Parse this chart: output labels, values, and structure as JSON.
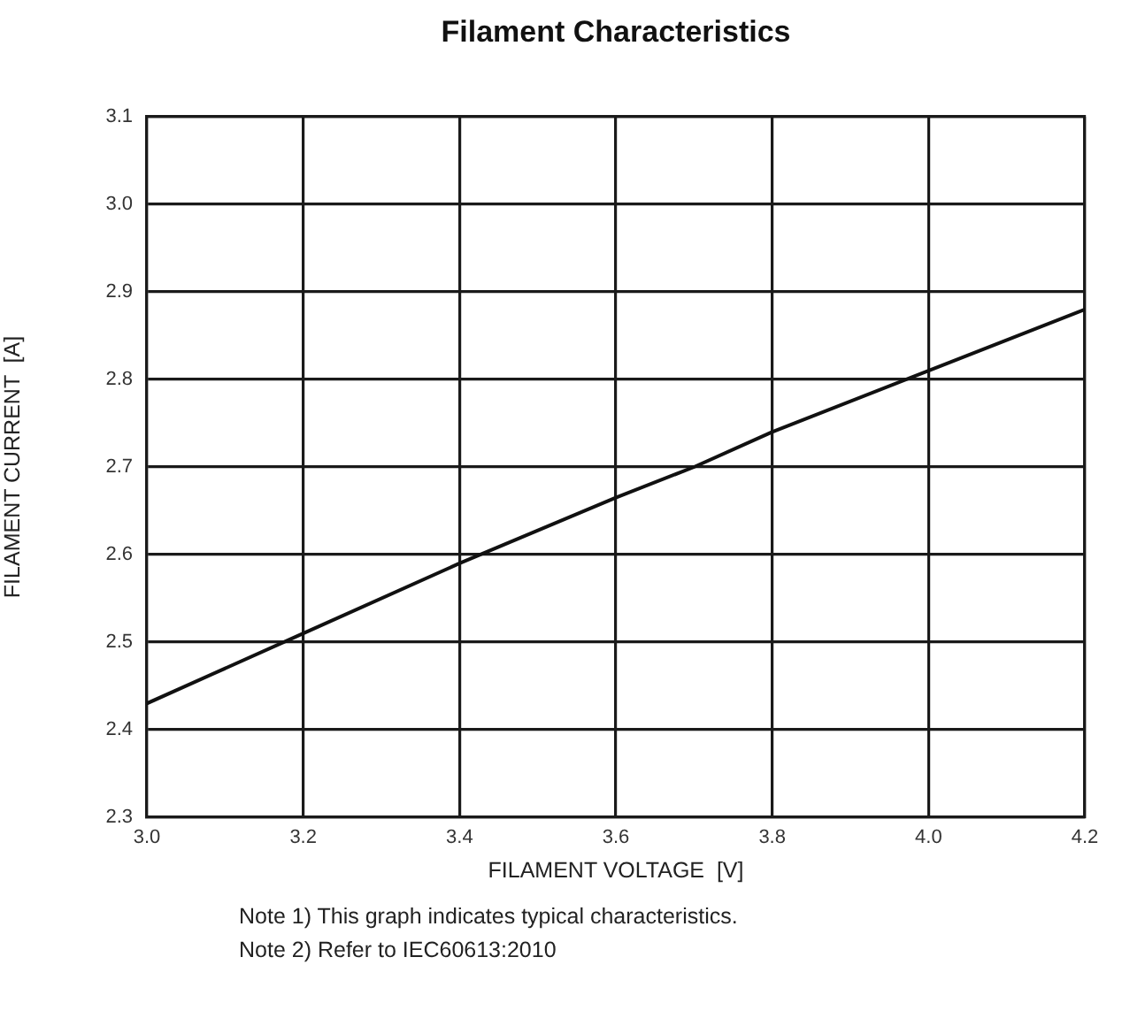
{
  "chart_data": {
    "type": "line",
    "title": "Filament Characteristics",
    "xlabel": "FILAMENT VOLTAGE  [V]",
    "ylabel": "FILAMENT CURRENT  [A]",
    "x": [
      3.0,
      3.2,
      3.4,
      3.6,
      3.7,
      3.8,
      4.0,
      4.2
    ],
    "series": [
      {
        "color": "#111111",
        "values": [
          2.43,
          2.51,
          2.59,
          2.665,
          2.7,
          2.74,
          2.81,
          2.88
        ]
      }
    ],
    "xlim": [
      3.0,
      4.2
    ],
    "xticks": [
      {
        "value": 3,
        "label": "3.0"
      },
      3.2,
      3.4,
      3.6,
      3.8,
      {
        "value": 4,
        "label": "4.0"
      },
      4.2
    ],
    "ylim": [
      2.3,
      3.1
    ],
    "yticks": [
      2.3,
      2.4,
      2.5,
      2.6,
      2.7,
      2.8,
      2.9,
      {
        "value": 3,
        "label": "3.0"
      },
      3.1
    ],
    "grid": true,
    "marker": "none",
    "line_style": "solid",
    "annotations": [
      "Note 1) This graph indicates typical characteristics.",
      "Note 2) Refer to IEC60613:2010"
    ]
  }
}
